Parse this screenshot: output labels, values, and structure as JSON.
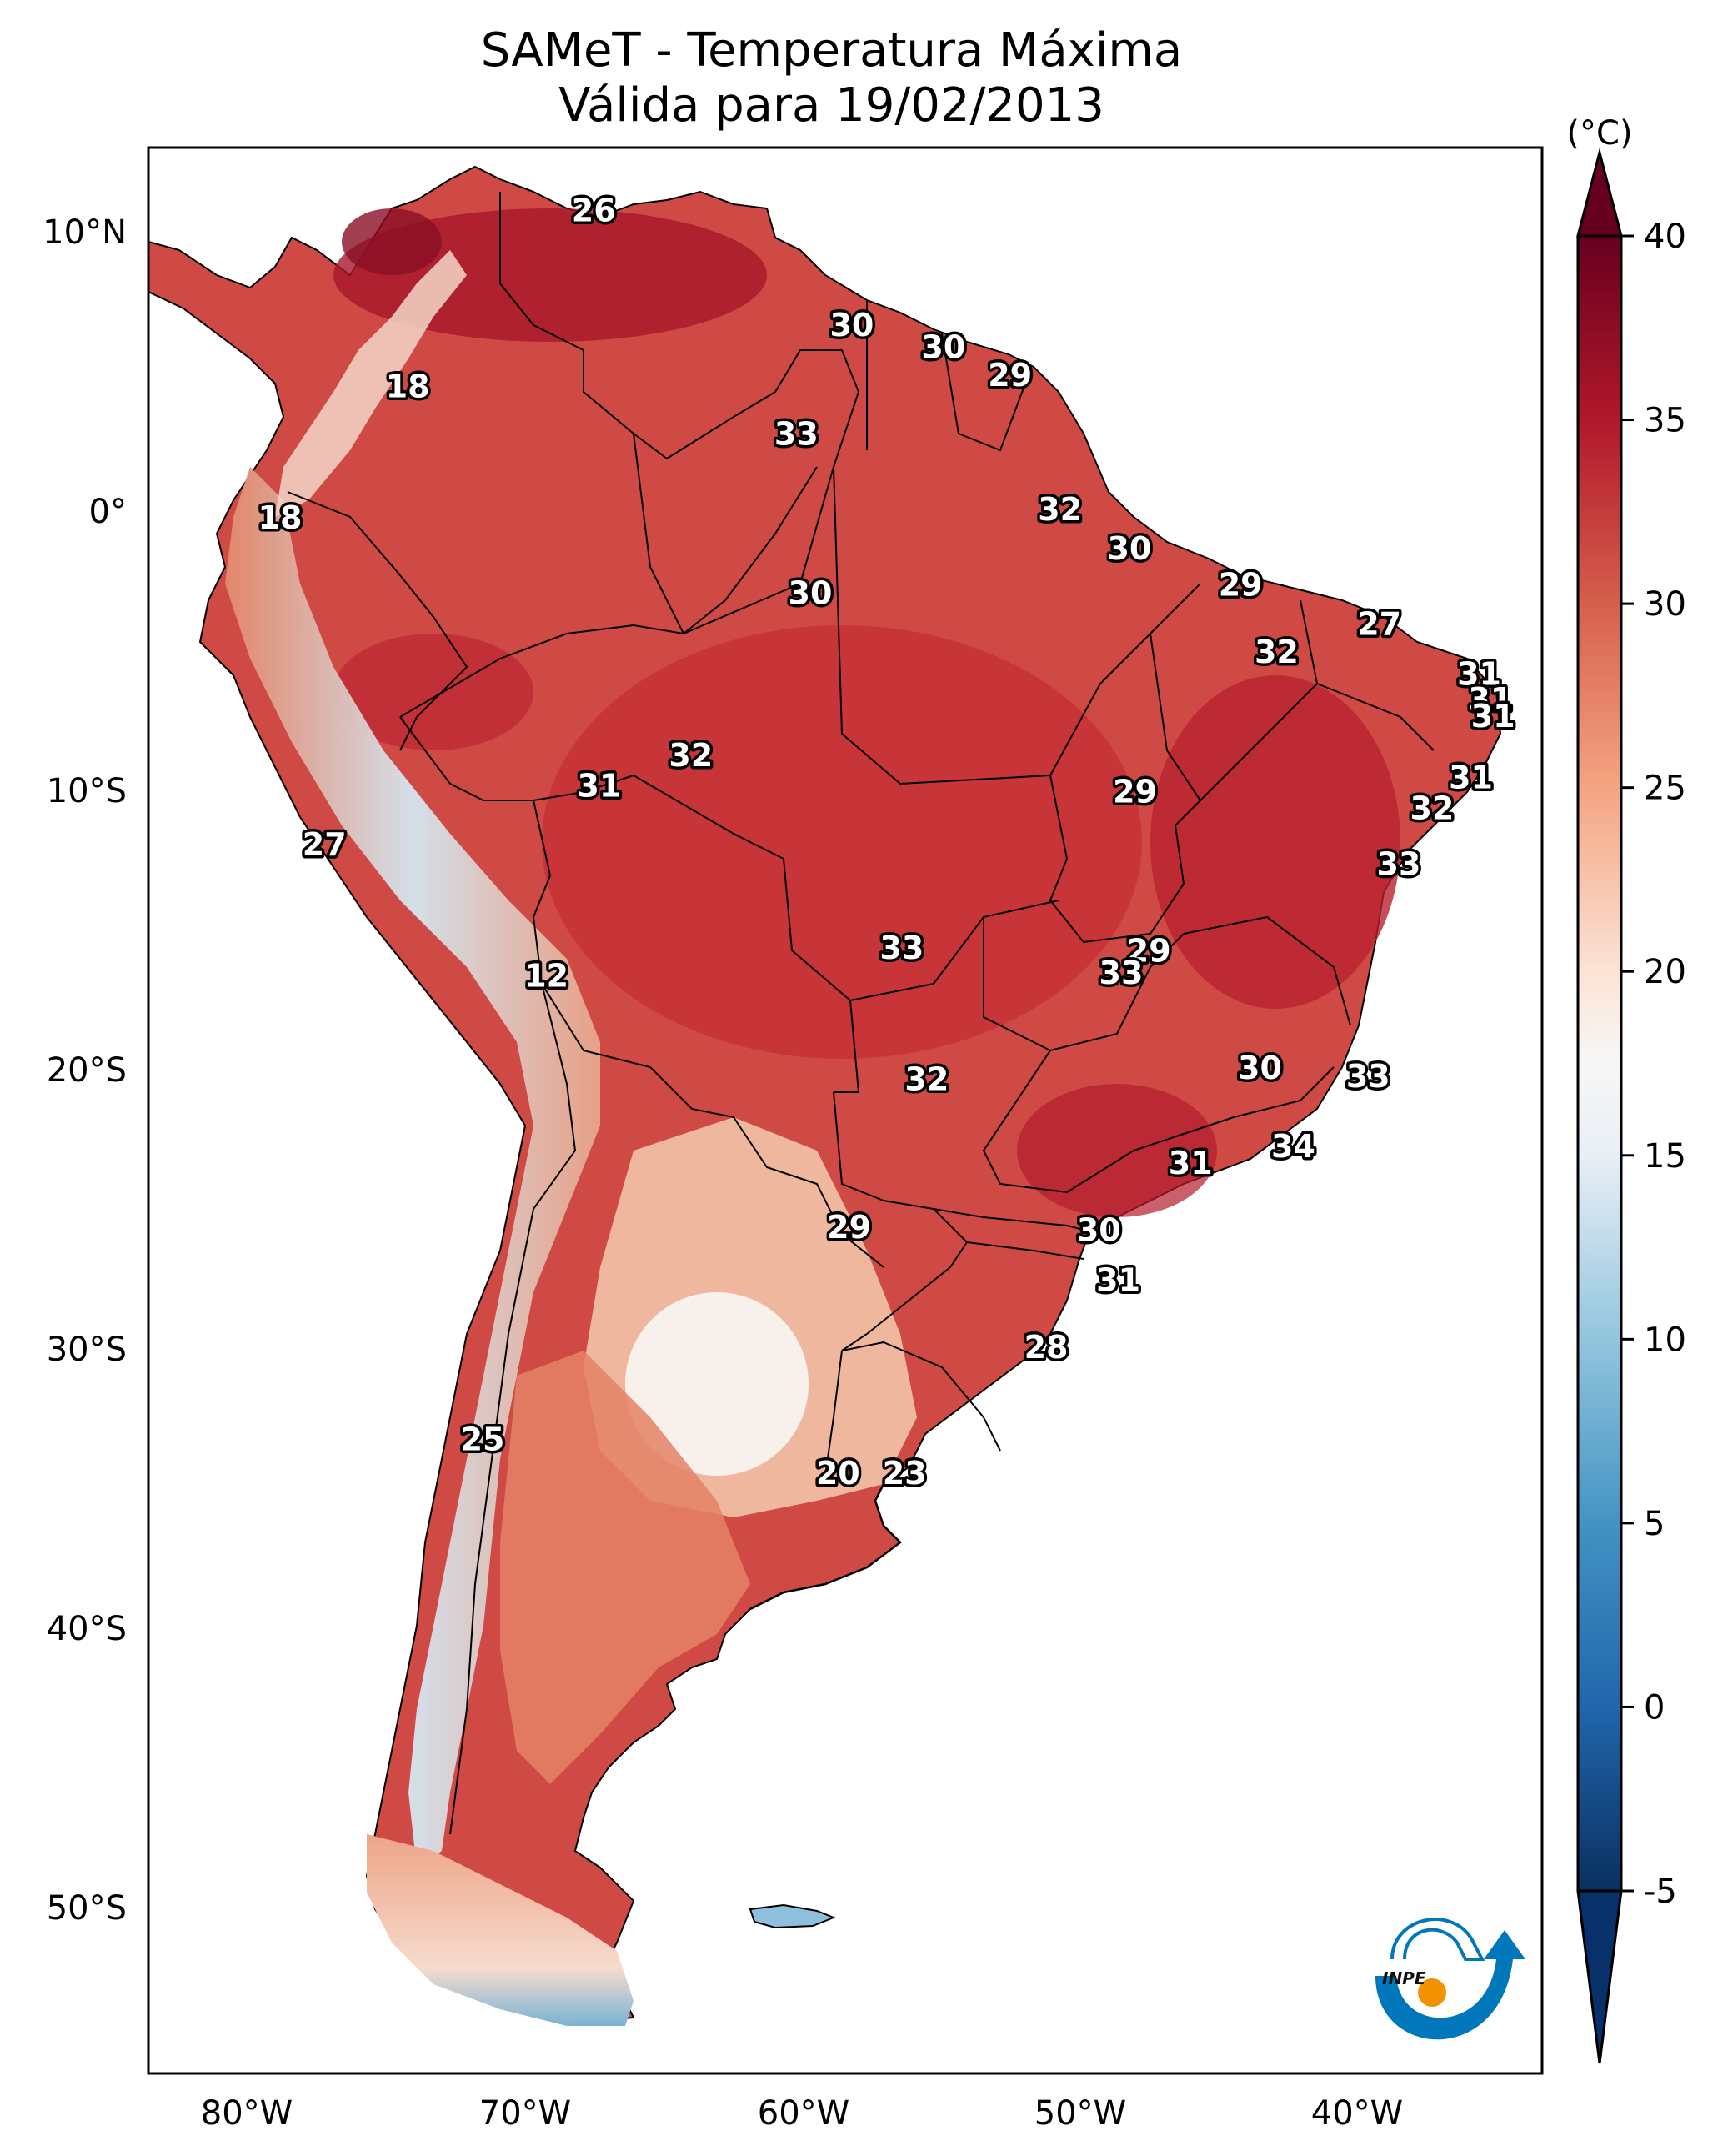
{
  "title": {
    "line1": "SAMeT - Temperatura Máxima",
    "line2": "Válida para 19/02/2013"
  },
  "chart_data": {
    "type": "heatmap",
    "subtype": "geographic-filled-contour-map",
    "title": "SAMeT - Temperatura Máxima",
    "subtitle": "Válida para 19/02/2013",
    "region": "South America",
    "variable": "Maximum temperature",
    "units": "(°C)",
    "lon_range": [
      -83,
      -33
    ],
    "lat_range": [
      -56,
      13
    ],
    "x_ticks": [
      "80°W",
      "70°W",
      "60°W",
      "50°W",
      "40°W"
    ],
    "x_tick_values": [
      -80,
      -70,
      -60,
      -50,
      -40
    ],
    "y_ticks": [
      "10°N",
      "0°",
      "10°S",
      "20°S",
      "30°S",
      "40°S",
      "50°S"
    ],
    "y_tick_values": [
      10,
      0,
      -10,
      -20,
      -30,
      -40,
      -50
    ],
    "colorbar": {
      "label": "(°C)",
      "colormap": "RdBu_r",
      "range": [
        -5,
        40
      ],
      "extend": "both",
      "ticks": [
        "40",
        "35",
        "30",
        "25",
        "20",
        "15",
        "10",
        "5",
        "0",
        "-5"
      ],
      "tick_values": [
        40,
        35,
        30,
        25,
        20,
        15,
        10,
        5,
        0,
        -5
      ],
      "stops": [
        {
          "value": -5,
          "color": "#0a3060"
        },
        {
          "value": 0,
          "color": "#2166ac"
        },
        {
          "value": 5,
          "color": "#4393c3"
        },
        {
          "value": 10,
          "color": "#92c5de"
        },
        {
          "value": 15,
          "color": "#e8eff5"
        },
        {
          "value": 17.5,
          "color": "#f7f7f7"
        },
        {
          "value": 20,
          "color": "#fbe3d6"
        },
        {
          "value": 25,
          "color": "#f4a582"
        },
        {
          "value": 30,
          "color": "#d6604d"
        },
        {
          "value": 35,
          "color": "#b2182b"
        },
        {
          "value": 40,
          "color": "#67001f"
        }
      ]
    },
    "annotations": [
      {
        "text": "26",
        "lon": -67.5,
        "lat": 10.7
      },
      {
        "text": "18",
        "lon": -74.2,
        "lat": 4.4
      },
      {
        "text": "30",
        "lon": -58.2,
        "lat": 6.6
      },
      {
        "text": "30",
        "lon": -54.9,
        "lat": 5.8
      },
      {
        "text": "29",
        "lon": -52.5,
        "lat": 4.8
      },
      {
        "text": "33",
        "lon": -60.2,
        "lat": 2.7
      },
      {
        "text": "18",
        "lon": -78.8,
        "lat": -0.3
      },
      {
        "text": "32",
        "lon": -50.7,
        "lat": 0.0
      },
      {
        "text": "30",
        "lon": -48.2,
        "lat": -1.4
      },
      {
        "text": "30",
        "lon": -59.7,
        "lat": -3.0
      },
      {
        "text": "29",
        "lon": -44.2,
        "lat": -2.7
      },
      {
        "text": "27",
        "lon": -39.2,
        "lat": -4.1
      },
      {
        "text": "32",
        "lon": -42.9,
        "lat": -5.1
      },
      {
        "text": "31",
        "lon": -35.6,
        "lat": -5.9
      },
      {
        "text": "31",
        "lon": -35.2,
        "lat": -6.8
      },
      {
        "text": "31",
        "lon": -35.1,
        "lat": -7.4
      },
      {
        "text": "32",
        "lon": -64.0,
        "lat": -8.8
      },
      {
        "text": "31",
        "lon": -67.3,
        "lat": -9.9
      },
      {
        "text": "31",
        "lon": -35.9,
        "lat": -9.6
      },
      {
        "text": "29",
        "lon": -48.0,
        "lat": -10.1
      },
      {
        "text": "32",
        "lon": -37.3,
        "lat": -10.7
      },
      {
        "text": "27",
        "lon": -77.2,
        "lat": -12.0
      },
      {
        "text": "33",
        "lon": -38.5,
        "lat": -12.7
      },
      {
        "text": "33",
        "lon": -56.4,
        "lat": -15.7
      },
      {
        "text": "29",
        "lon": -47.5,
        "lat": -15.8
      },
      {
        "text": "33",
        "lon": -48.5,
        "lat": -16.6
      },
      {
        "text": "12",
        "lon": -69.2,
        "lat": -16.7
      },
      {
        "text": "30",
        "lon": -43.5,
        "lat": -20.0
      },
      {
        "text": "33",
        "lon": -39.6,
        "lat": -20.3
      },
      {
        "text": "32",
        "lon": -55.5,
        "lat": -20.4
      },
      {
        "text": "34",
        "lon": -42.3,
        "lat": -22.8
      },
      {
        "text": "31",
        "lon": -46.0,
        "lat": -23.4
      },
      {
        "text": "29",
        "lon": -58.3,
        "lat": -25.7
      },
      {
        "text": "30",
        "lon": -49.3,
        "lat": -25.8
      },
      {
        "text": "31",
        "lon": -48.6,
        "lat": -27.6
      },
      {
        "text": "28",
        "lon": -51.2,
        "lat": -30.0
      },
      {
        "text": "25",
        "lon": -71.5,
        "lat": -33.3
      },
      {
        "text": "20",
        "lon": -58.7,
        "lat": -34.5
      },
      {
        "text": "23",
        "lon": -56.3,
        "lat": -34.5
      }
    ]
  },
  "logo": {
    "text": "INPE",
    "colors": {
      "arc": "#0077bb",
      "sun": "#f39200"
    }
  }
}
